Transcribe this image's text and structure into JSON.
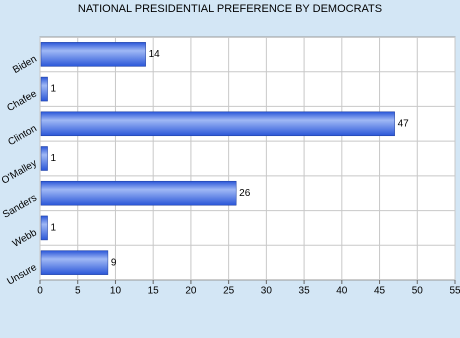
{
  "chart_data": {
    "type": "bar",
    "orientation": "horizontal",
    "title": "NATIONAL PRESIDENTIAL PREFERENCE BY DEMOCRATS",
    "categories": [
      "Biden",
      "Chafee",
      "Clinton",
      "O'Malley",
      "Sanders",
      "Webb",
      "Unsure"
    ],
    "values": [
      14,
      1,
      47,
      1,
      26,
      1,
      9
    ],
    "color": "#2a56d8",
    "xlim": [
      0,
      55
    ],
    "xticks": [
      0,
      5,
      10,
      15,
      20,
      25,
      30,
      35,
      40,
      45,
      50,
      55
    ],
    "grid": true
  }
}
